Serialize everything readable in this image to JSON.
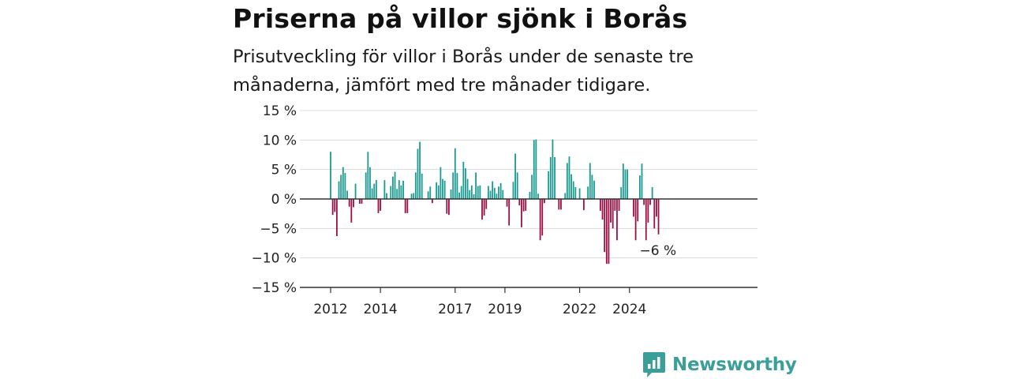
{
  "chart_data": {
    "type": "bar",
    "title": "Priserna på villor sjönk i Borås",
    "subtitle": "Prisutveckling för villor i Borås under de senaste tre månaderna, jämfört med tre månader tidigare.",
    "ylim": [
      -15,
      15
    ],
    "yticks": [
      15,
      10,
      5,
      0,
      -5,
      -10,
      -15
    ],
    "ytick_labels": [
      "15 %",
      "10 %",
      "5 %",
      "0 %",
      "−5 %",
      "−10 %",
      "−15 %"
    ],
    "xticks": [
      {
        "label": "2012",
        "month_index": 0
      },
      {
        "label": "2014",
        "month_index": 24
      },
      {
        "label": "2017",
        "month_index": 60
      },
      {
        "label": "2019",
        "month_index": 84
      },
      {
        "label": "2022",
        "month_index": 120
      },
      {
        "label": "2024",
        "month_index": 144
      }
    ],
    "start": "2012-01",
    "values": [
      8,
      -2.7,
      -2.2,
      -6.3,
      3,
      4.1,
      5.4,
      4.4,
      1.4,
      -1.3,
      -4,
      -1.4,
      2.6,
      0,
      -0.8,
      -0.8,
      0,
      4.5,
      8,
      5.4,
      1.8,
      2.6,
      3.2,
      -2.4,
      -2,
      0,
      3.2,
      1,
      0,
      2.2,
      3.8,
      4.6,
      1.7,
      3.2,
      2.3,
      3.1,
      -2.4,
      -2.4,
      0,
      0.9,
      1,
      4.5,
      8.5,
      9.7,
      4.3,
      0,
      0,
      1.3,
      2.1,
      -0.7,
      0,
      2.8,
      2.3,
      5.4,
      3.4,
      3.1,
      -2.5,
      -2.7,
      1.6,
      4.5,
      8.6,
      4.4,
      1.1,
      2.2,
      6.3,
      5.2,
      3.4,
      1.5,
      2.3,
      0.8,
      4.5,
      2.2,
      2.3,
      -3.5,
      -2.8,
      -1.7,
      2.2,
      1.4,
      3,
      1.9,
      0.9,
      2.1,
      2.7,
      1.5,
      0,
      -1.3,
      -4.5,
      0,
      2.9,
      7.7,
      4.5,
      -1.1,
      -4.8,
      -2.1,
      -2,
      0,
      1.2,
      4.1,
      10,
      10.1,
      0.9,
      -7,
      -6.2,
      -0.7,
      0,
      4.7,
      7.1,
      10.1,
      7.1,
      0,
      -1.8,
      -1.8,
      0,
      1,
      6.1,
      7.2,
      4.2,
      3,
      2,
      0,
      1.8,
      0,
      -1.9,
      0,
      2.1,
      6.1,
      4.1,
      3.1,
      0,
      0,
      -2,
      -3.5,
      -9,
      -11,
      -11,
      -4,
      -5,
      -2,
      -7,
      -2,
      2,
      6,
      5,
      5,
      0,
      0,
      -3,
      -7,
      -3.8,
      4,
      6,
      -1,
      -7,
      -4,
      -1,
      2,
      -5,
      -3,
      -6
    ],
    "colors": {
      "positive": "#1a9a91",
      "negative": "#9a0f45"
    },
    "last_value_label": "−6 %",
    "grid": true
  },
  "logo": {
    "text": "Newsworthy"
  }
}
